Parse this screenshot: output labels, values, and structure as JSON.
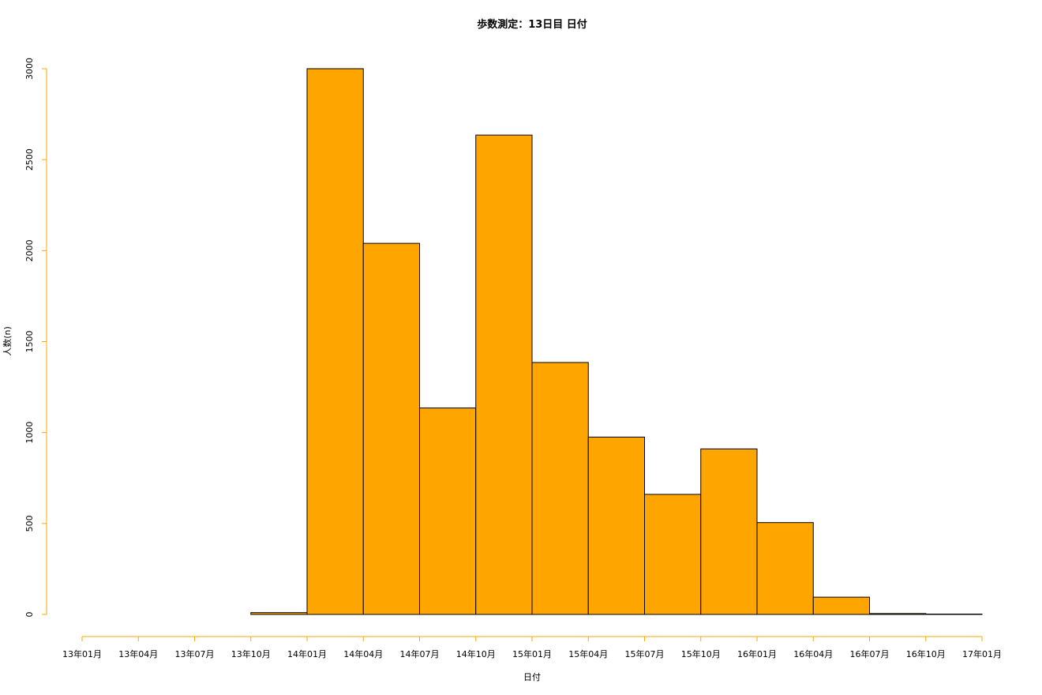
{
  "chart_data": {
    "type": "bar",
    "title": "歩数測定：13日目 日付",
    "xlabel": "日付",
    "ylabel": "人数(n)",
    "ylim": [
      0,
      3000
    ],
    "yticks": [
      0,
      500,
      1000,
      1500,
      2000,
      2500,
      3000
    ],
    "x_tick_labels": [
      "13年01月",
      "13年04月",
      "13年07月",
      "13年10月",
      "14年01月",
      "14年04月",
      "14年07月",
      "14年10月",
      "15年01月",
      "15年04月",
      "15年07月",
      "15年10月",
      "16年01月",
      "16年04月",
      "16年07月",
      "16年10月",
      "17年01月"
    ],
    "bins": [
      {
        "start": "2013-01",
        "end": "2013-04",
        "value": 0
      },
      {
        "start": "2013-04",
        "end": "2013-07",
        "value": 0
      },
      {
        "start": "2013-07",
        "end": "2013-10",
        "value": 0
      },
      {
        "start": "2013-10",
        "end": "2014-01",
        "value": 10
      },
      {
        "start": "2014-01",
        "end": "2014-04",
        "value": 3000
      },
      {
        "start": "2014-04",
        "end": "2014-07",
        "value": 2040
      },
      {
        "start": "2014-07",
        "end": "2014-10",
        "value": 1135
      },
      {
        "start": "2014-10",
        "end": "2015-01",
        "value": 2635
      },
      {
        "start": "2015-01",
        "end": "2015-04",
        "value": 1385
      },
      {
        "start": "2015-04",
        "end": "2015-07",
        "value": 975
      },
      {
        "start": "2015-07",
        "end": "2015-10",
        "value": 660
      },
      {
        "start": "2015-10",
        "end": "2016-01",
        "value": 910
      },
      {
        "start": "2016-01",
        "end": "2016-04",
        "value": 505
      },
      {
        "start": "2016-04",
        "end": "2016-07",
        "value": 95
      },
      {
        "start": "2016-07",
        "end": "2016-10",
        "value": 5
      },
      {
        "start": "2016-10",
        "end": "2017-01",
        "value": 2
      }
    ],
    "bar_color": "#FFA500",
    "bar_border_color": "#000000",
    "axis_color": "#FFA500",
    "grid": false,
    "legend": "none"
  }
}
